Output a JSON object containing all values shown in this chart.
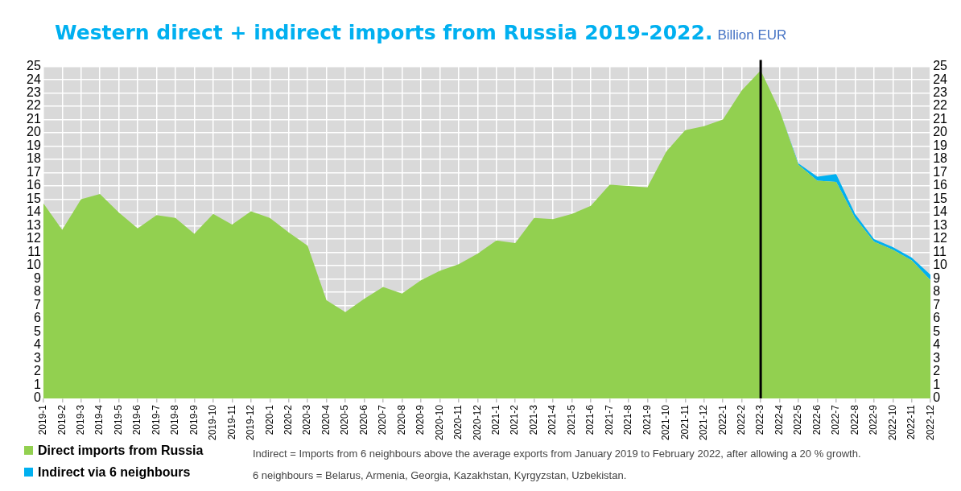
{
  "chart_data": {
    "type": "area",
    "title": "Western direct + indirect imports from Russia 2019-2022.",
    "subtitle": "Billion EUR",
    "categories": [
      "2019-1",
      "2019-2",
      "2019-3",
      "2019-4",
      "2019-5",
      "2019-6",
      "2019-7",
      "2019-8",
      "2019-9",
      "2019-10",
      "2019-11",
      "2019-12",
      "2020-1",
      "2020-2",
      "2020-3",
      "2020-4",
      "2020-5",
      "2020-6",
      "2020-7",
      "2020-8",
      "2020-9",
      "2020-10",
      "2020-11",
      "2020-12",
      "2021-1",
      "2021-2",
      "2021-3",
      "2021-4",
      "2021-5",
      "2021-6",
      "2021-7",
      "2021-8",
      "2021-9",
      "2021-10",
      "2021-11",
      "2021-12",
      "2022-1",
      "2022-2",
      "2022-3",
      "2022-4",
      "2022-5",
      "2022-6",
      "2022-7",
      "2022-8",
      "2022-9",
      "2022-10",
      "2022-11",
      "2022-12"
    ],
    "series": [
      {
        "name": "Direct imports from Russia",
        "color": "#92d050",
        "values": [
          14.7,
          12.7,
          15.0,
          15.4,
          14.0,
          12.8,
          13.8,
          13.6,
          12.4,
          13.9,
          13.1,
          14.1,
          13.6,
          12.5,
          11.5,
          7.4,
          6.5,
          7.5,
          8.4,
          7.9,
          8.9,
          9.6,
          10.1,
          10.9,
          11.9,
          11.7,
          13.6,
          13.5,
          13.9,
          14.5,
          16.1,
          16.0,
          15.9,
          18.6,
          20.2,
          20.5,
          21.0,
          23.2,
          24.7,
          21.7,
          17.6,
          16.4,
          16.3,
          13.6,
          11.8,
          11.2,
          10.4,
          8.9
        ]
      },
      {
        "name": "Indirect via 6 neighbours",
        "color": "#00b0f0",
        "values": [
          0,
          0,
          0,
          0,
          0,
          0,
          0,
          0,
          0,
          0,
          0,
          0,
          0,
          0,
          0,
          0,
          0,
          0,
          0,
          0,
          0,
          0,
          0,
          0,
          0,
          0,
          0,
          0,
          0,
          0,
          0,
          0,
          0,
          0,
          0,
          0,
          0,
          0,
          0,
          0,
          0.1,
          0.3,
          0.6,
          0.3,
          0.2,
          0.2,
          0.2,
          0.4
        ]
      }
    ],
    "stacked": true,
    "ylim": [
      0,
      25
    ],
    "yticks": [
      0,
      1,
      2,
      3,
      4,
      5,
      6,
      7,
      8,
      9,
      10,
      11,
      12,
      13,
      14,
      15,
      16,
      17,
      18,
      19,
      20,
      21,
      22,
      23,
      24,
      25
    ],
    "y2lim": [
      0,
      25
    ],
    "y2ticks": [
      0,
      1,
      2,
      3,
      4,
      5,
      6,
      7,
      8,
      9,
      10,
      11,
      12,
      13,
      14,
      15,
      16,
      17,
      18,
      19,
      20,
      21,
      22,
      23,
      24,
      25
    ],
    "grid": true,
    "legend": "bottom left",
    "ref_lines": [
      {
        "axis": "x",
        "value": "2022-3",
        "color": "#000000"
      }
    ],
    "annotations": [
      "Indirect = Imports from 6 neighbours above the average exports from January 2019 to February 2022, after allowing a 20 % growth.",
      "6 neighbours = Belarus, Armenia, Georgia, Kazakhstan, Kyrgyzstan, Uzbekistan."
    ]
  }
}
